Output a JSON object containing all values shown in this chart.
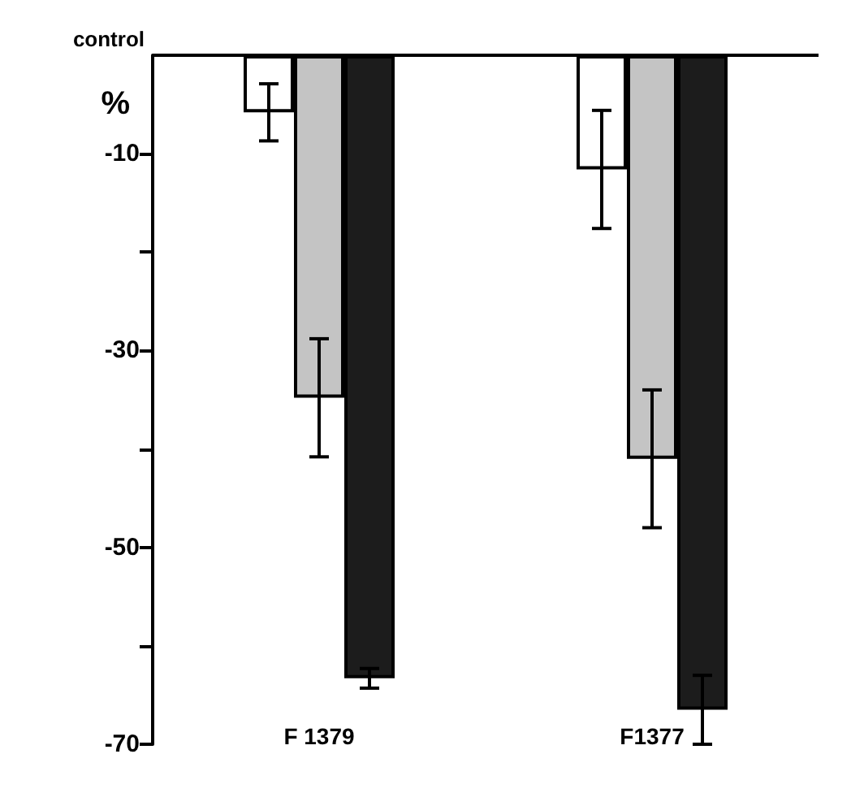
{
  "chart_data": {
    "type": "bar",
    "ylabel": "%",
    "categories": [
      "F 1379",
      "F1377"
    ],
    "series": [
      {
        "color": "#ffffff",
        "values": [
          -5.8,
          -11.6
        ],
        "errors": [
          2.9,
          6
        ]
      },
      {
        "color": "#c4c4c4",
        "values": [
          -34.8,
          -41
        ],
        "errors": [
          6,
          7
        ]
      },
      {
        "color": "#1c1c1c",
        "values": [
          -63.3,
          -66.5
        ],
        "errors": [
          1,
          3.5
        ]
      }
    ],
    "ylim": [
      -70,
      0
    ],
    "yticks": [
      -10,
      {
        "value": -20,
        "label": null
      },
      -30,
      {
        "value": -40,
        "label": null
      },
      -50,
      {
        "value": -60,
        "label": null
      },
      -70
    ],
    "ref_lines": [
      {
        "axis": "y",
        "value": 0,
        "label": "control"
      }
    ],
    "grid": false
  }
}
